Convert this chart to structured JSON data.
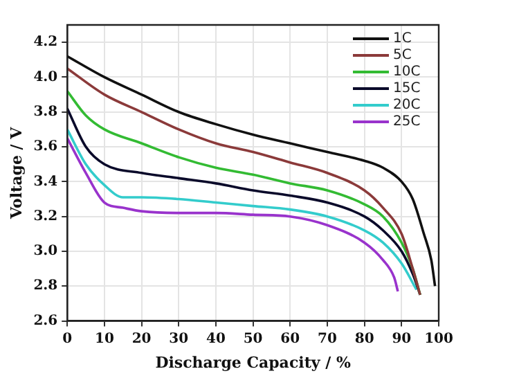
{
  "chart_data": {
    "type": "line",
    "xlabel": "Discharge Capacity / %",
    "ylabel": "Voltage / V",
    "xlim": [
      0,
      100
    ],
    "xticks": [
      0,
      10,
      20,
      30,
      40,
      50,
      60,
      70,
      80,
      90,
      100
    ],
    "ylim": [
      2.6,
      4.3
    ],
    "yticks": [
      2.6,
      2.8,
      {
        "value": 3,
        "label": "3.0"
      },
      3.2,
      3.4,
      3.6,
      3.8,
      {
        "value": 4,
        "label": "4.0"
      },
      4.2
    ],
    "grid": true,
    "legend": "top right",
    "marker": "none",
    "line_style": "solid",
    "series": [
      {
        "name": "1C",
        "color": "#111111",
        "x": [
          0,
          10,
          20,
          30,
          40,
          50,
          60,
          70,
          80,
          85,
          90,
          93,
          96,
          98,
          99
        ],
        "values": [
          4.12,
          4.0,
          3.9,
          3.8,
          3.73,
          3.67,
          3.62,
          3.57,
          3.52,
          3.48,
          3.4,
          3.3,
          3.1,
          2.95,
          2.8
        ]
      },
      {
        "name": "5C",
        "color": "#8b3a3a",
        "x": [
          0,
          10,
          20,
          30,
          40,
          50,
          60,
          70,
          80,
          85,
          90,
          93,
          95
        ],
        "values": [
          4.05,
          3.9,
          3.8,
          3.7,
          3.62,
          3.57,
          3.51,
          3.45,
          3.35,
          3.25,
          3.1,
          2.9,
          2.75
        ]
      },
      {
        "name": "10C",
        "color": "#33bb33",
        "x": [
          0,
          5,
          10,
          20,
          30,
          40,
          50,
          60,
          70,
          80,
          85,
          90,
          93,
          95
        ],
        "values": [
          3.92,
          3.78,
          3.7,
          3.62,
          3.54,
          3.48,
          3.44,
          3.39,
          3.35,
          3.27,
          3.2,
          3.05,
          2.9,
          2.75
        ]
      },
      {
        "name": "15C",
        "color": "#0a0a2a",
        "x": [
          0,
          5,
          10,
          20,
          30,
          40,
          50,
          60,
          70,
          80,
          85,
          90,
          93,
          95
        ],
        "values": [
          3.82,
          3.6,
          3.5,
          3.45,
          3.42,
          3.39,
          3.35,
          3.32,
          3.28,
          3.2,
          3.12,
          3.0,
          2.87,
          2.75
        ]
      },
      {
        "name": "20C",
        "color": "#33cccc",
        "x": [
          0,
          5,
          10,
          15,
          20,
          30,
          40,
          50,
          60,
          70,
          80,
          85,
          90,
          94
        ],
        "values": [
          3.7,
          3.5,
          3.38,
          3.31,
          3.31,
          3.3,
          3.28,
          3.26,
          3.24,
          3.2,
          3.12,
          3.05,
          2.93,
          2.78
        ]
      },
      {
        "name": "25C",
        "color": "#9933cc",
        "x": [
          0,
          5,
          10,
          15,
          20,
          30,
          40,
          50,
          60,
          70,
          80,
          85,
          88,
          89
        ],
        "values": [
          3.65,
          3.45,
          3.28,
          3.25,
          3.23,
          3.22,
          3.22,
          3.21,
          3.2,
          3.15,
          3.05,
          2.95,
          2.85,
          2.77
        ]
      }
    ]
  }
}
